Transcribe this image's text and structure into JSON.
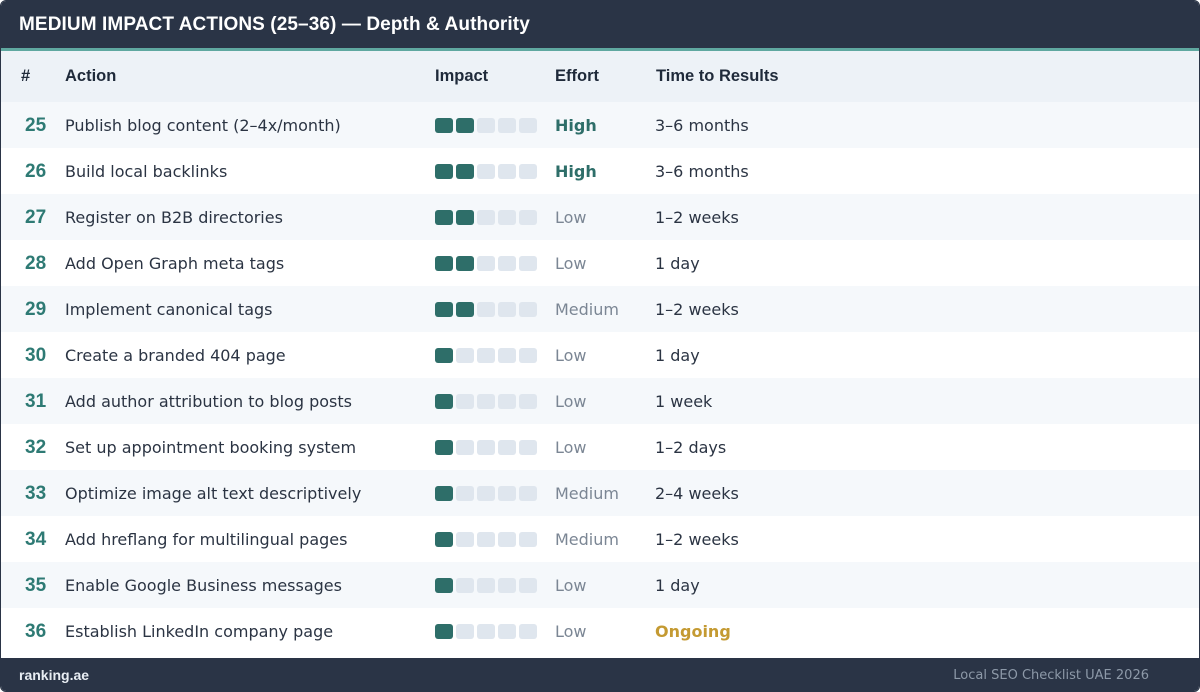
{
  "title": "MEDIUM IMPACT ACTIONS (25–36) — Depth & Authority",
  "colors": {
    "header_bg": "#2a3446",
    "accent_teal": "#2e6e69",
    "impact_empty": "#dfe6ee",
    "ongoing_gold": "#c49a32"
  },
  "columns": {
    "num": "#",
    "action": "Action",
    "impact": "Impact",
    "effort": "Effort",
    "time": "Time to Results"
  },
  "impact_max": 5,
  "rows": [
    {
      "num": "25",
      "action": "Publish blog content (2–4x/month)",
      "impact": 2,
      "effort": "High",
      "time": "3–6 months"
    },
    {
      "num": "26",
      "action": "Build local backlinks",
      "impact": 2,
      "effort": "High",
      "time": "3–6 months"
    },
    {
      "num": "27",
      "action": "Register on B2B directories",
      "impact": 2,
      "effort": "Low",
      "time": "1–2 weeks"
    },
    {
      "num": "28",
      "action": "Add Open Graph meta tags",
      "impact": 2,
      "effort": "Low",
      "time": "1 day"
    },
    {
      "num": "29",
      "action": "Implement canonical tags",
      "impact": 2,
      "effort": "Medium",
      "time": "1–2 weeks"
    },
    {
      "num": "30",
      "action": "Create a branded 404 page",
      "impact": 1,
      "effort": "Low",
      "time": "1 day"
    },
    {
      "num": "31",
      "action": "Add author attribution to blog posts",
      "impact": 1,
      "effort": "Low",
      "time": "1 week"
    },
    {
      "num": "32",
      "action": "Set up appointment booking system",
      "impact": 1,
      "effort": "Low",
      "time": "1–2 days"
    },
    {
      "num": "33",
      "action": "Optimize image alt text descriptively",
      "impact": 1,
      "effort": "Medium",
      "time": "2–4 weeks"
    },
    {
      "num": "34",
      "action": "Add hreflang for multilingual pages",
      "impact": 1,
      "effort": "Medium",
      "time": "1–2 weeks"
    },
    {
      "num": "35",
      "action": "Enable Google Business messages",
      "impact": 1,
      "effort": "Low",
      "time": "1 day"
    },
    {
      "num": "36",
      "action": "Establish LinkedIn company page",
      "impact": 1,
      "effort": "Low",
      "time": "Ongoing"
    }
  ],
  "footer": {
    "brand": "ranking.ae",
    "caption": "Local SEO Checklist UAE 2026"
  }
}
